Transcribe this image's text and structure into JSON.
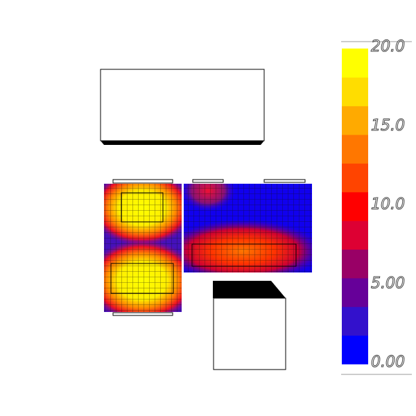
{
  "legend": {
    "labels": [
      "20.0",
      "15.0",
      "10.0",
      "5.00",
      "0.00"
    ],
    "colors": [
      "#0000ff",
      "#3311cc",
      "#660099",
      "#990066",
      "#dd0033",
      "#ff0000",
      "#ff4400",
      "#ff7700",
      "#ffaa00",
      "#ffdd00",
      "#ffff00"
    ]
  }
}
